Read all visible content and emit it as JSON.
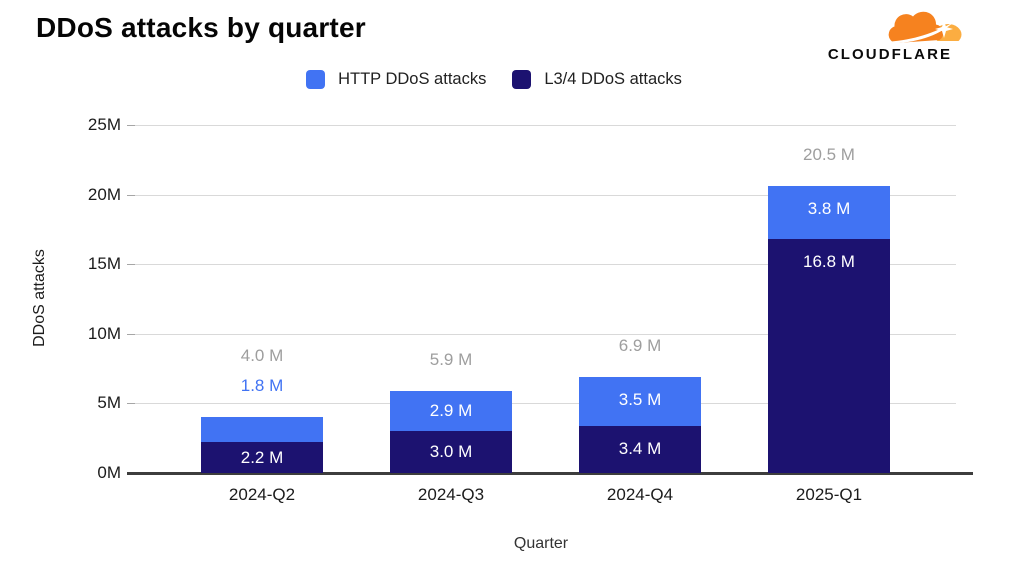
{
  "header": {
    "title": "DDoS attacks by quarter",
    "logo_text": "CLOUDFLARE"
  },
  "colors": {
    "http_blue": "#4173F3",
    "l34_navy": "#1C1270",
    "total_label_gray": "#9E9E9E",
    "grid_gray": "#D9D9D9",
    "axis_dark": "#3D3D3D",
    "logo_orange": "#F6821F",
    "logo_light_orange": "#FBAD41"
  },
  "chart_data": {
    "type": "bar",
    "stacked": true,
    "title": "DDoS attacks by quarter",
    "xlabel": "Quarter",
    "ylabel": "DDoS attacks",
    "categories": [
      "2024-Q2",
      "2024-Q3",
      "2024-Q4",
      "2025-Q1"
    ],
    "series": [
      {
        "name": "HTTP DDoS attacks",
        "color_key": "http_blue",
        "stack_position": "top",
        "values": [
          1.8,
          2.9,
          3.5,
          3.8
        ],
        "labels": [
          "1.8 M",
          "2.9 M",
          "3.5 M",
          "3.8 M"
        ]
      },
      {
        "name": "L3/4 DDoS attacks",
        "color_key": "l34_navy",
        "stack_position": "bottom",
        "values": [
          2.2,
          3.0,
          3.4,
          16.8
        ],
        "labels": [
          "2.2 M",
          "3.0 M",
          "3.4 M",
          "16.8 M"
        ]
      }
    ],
    "totals": {
      "values": [
        4.0,
        5.9,
        6.9,
        20.5
      ],
      "labels": [
        "4.0 M",
        "5.9 M",
        "6.9 M",
        "20.5 M"
      ]
    },
    "y_ticks": [
      {
        "value": 0,
        "label": "0M"
      },
      {
        "value": 5,
        "label": "5M"
      },
      {
        "value": 10,
        "label": "10M"
      },
      {
        "value": 15,
        "label": "15M"
      },
      {
        "value": 20,
        "label": "20M"
      },
      {
        "value": 25,
        "label": "25M"
      }
    ],
    "ylim": [
      0,
      25
    ],
    "grid": true,
    "legend_position": "top"
  }
}
